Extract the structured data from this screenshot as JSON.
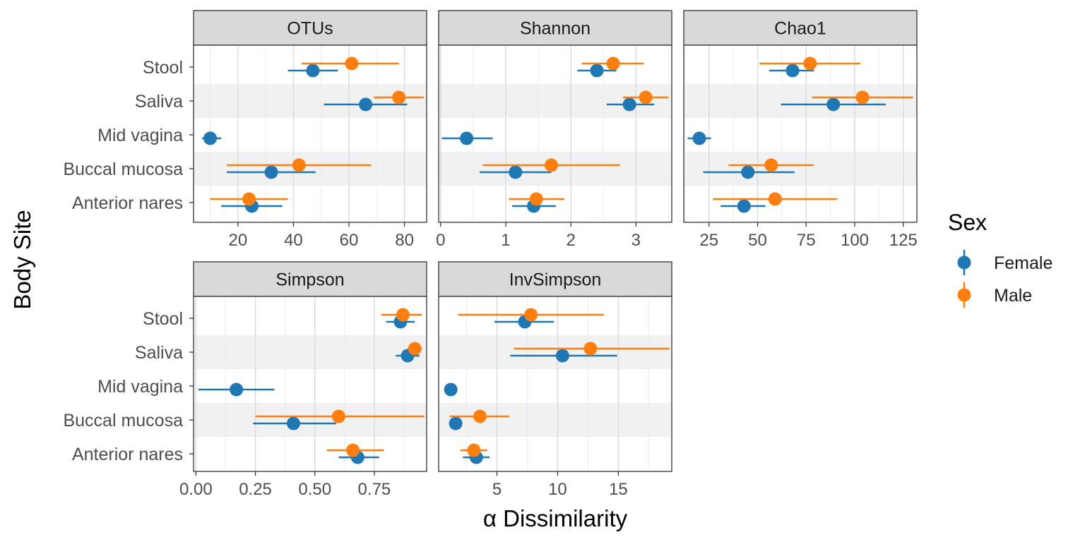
{
  "chart_data": {
    "type": "scatter",
    "subtype": "faceted dot-and-errorbar plot",
    "xlabel": "α Dissimilarity",
    "ylabel": "Body Site",
    "categories": [
      "Stool",
      "Saliva",
      "Mid vagina",
      "Buccal mucosa",
      "Anterior nares"
    ],
    "legend": {
      "title": "Sex",
      "position": "right",
      "entries": [
        {
          "name": "Female",
          "color": "#1f77b4"
        },
        {
          "name": "Male",
          "color": "#ff7f0e"
        }
      ]
    },
    "grid": true,
    "panels": [
      {
        "title": "OTUs",
        "xlim": [
          4,
          88
        ],
        "xticks": [
          20,
          40,
          60,
          80
        ],
        "xtick_labels": [
          "20",
          "40",
          "60",
          "80"
        ],
        "series": [
          {
            "name": "Female",
            "points": [
              {
                "site": "Stool",
                "mean": 47,
                "low": 38,
                "high": 56
              },
              {
                "site": "Saliva",
                "mean": 66,
                "low": 51,
                "high": 81
              },
              {
                "site": "Mid vagina",
                "mean": 10,
                "low": 7,
                "high": 14
              },
              {
                "site": "Buccal mucosa",
                "mean": 32,
                "low": 16,
                "high": 48
              },
              {
                "site": "Anterior nares",
                "mean": 25,
                "low": 14,
                "high": 36
              }
            ]
          },
          {
            "name": "Male",
            "points": [
              {
                "site": "Stool",
                "mean": 61,
                "low": 43,
                "high": 78
              },
              {
                "site": "Saliva",
                "mean": 78,
                "low": 69,
                "high": 87
              },
              {
                "site": "Buccal mucosa",
                "mean": 42,
                "low": 16,
                "high": 68
              },
              {
                "site": "Anterior nares",
                "mean": 24,
                "low": 10,
                "high": 38
              }
            ]
          }
        ]
      },
      {
        "title": "Shannon",
        "xlim": [
          -0.03,
          3.55
        ],
        "xticks": [
          0,
          1,
          2,
          3
        ],
        "xtick_labels": [
          "0",
          "1",
          "2",
          "3"
        ],
        "series": [
          {
            "name": "Female",
            "points": [
              {
                "site": "Stool",
                "mean": 2.4,
                "low": 2.1,
                "high": 2.7
              },
              {
                "site": "Saliva",
                "mean": 2.9,
                "low": 2.55,
                "high": 3.28
              },
              {
                "site": "Mid vagina",
                "mean": 0.4,
                "low": 0.02,
                "high": 0.8
              },
              {
                "site": "Buccal mucosa",
                "mean": 1.15,
                "low": 0.6,
                "high": 1.7
              },
              {
                "site": "Anterior nares",
                "mean": 1.43,
                "low": 1.1,
                "high": 1.77
              }
            ]
          },
          {
            "name": "Male",
            "points": [
              {
                "site": "Stool",
                "mean": 2.65,
                "low": 2.17,
                "high": 3.12
              },
              {
                "site": "Saliva",
                "mean": 3.15,
                "low": 2.8,
                "high": 3.5
              },
              {
                "site": "Buccal mucosa",
                "mean": 1.7,
                "low": 0.65,
                "high": 2.75
              },
              {
                "site": "Anterior nares",
                "mean": 1.47,
                "low": 1.05,
                "high": 1.9
              }
            ]
          }
        ]
      },
      {
        "title": "Chao1",
        "xlim": [
          12,
          132
        ],
        "xticks": [
          25,
          50,
          75,
          100,
          125
        ],
        "xtick_labels": [
          "25",
          "50",
          "75",
          "100",
          "125"
        ],
        "series": [
          {
            "name": "Female",
            "points": [
              {
                "site": "Stool",
                "mean": 68,
                "low": 56,
                "high": 79
              },
              {
                "site": "Saliva",
                "mean": 89,
                "low": 62,
                "high": 116
              },
              {
                "site": "Mid vagina",
                "mean": 20,
                "low": 14,
                "high": 26
              },
              {
                "site": "Buccal mucosa",
                "mean": 45,
                "low": 22,
                "high": 69
              },
              {
                "site": "Anterior nares",
                "mean": 43,
                "low": 31,
                "high": 54
              }
            ]
          },
          {
            "name": "Male",
            "points": [
              {
                "site": "Stool",
                "mean": 77,
                "low": 51,
                "high": 103
              },
              {
                "site": "Saliva",
                "mean": 104,
                "low": 78,
                "high": 130
              },
              {
                "site": "Buccal mucosa",
                "mean": 57,
                "low": 35,
                "high": 79
              },
              {
                "site": "Anterior nares",
                "mean": 59,
                "low": 27,
                "high": 91
              }
            ]
          }
        ]
      },
      {
        "title": "Simpson",
        "xlim": [
          -0.01,
          0.97
        ],
        "xticks": [
          0,
          0.25,
          0.5,
          0.75
        ],
        "xtick_labels": [
          "0.00",
          "0.25",
          "0.50",
          "0.75"
        ],
        "series": [
          {
            "name": "Female",
            "points": [
              {
                "site": "Stool",
                "mean": 0.86,
                "low": 0.8,
                "high": 0.92
              },
              {
                "site": "Saliva",
                "mean": 0.89,
                "low": 0.84,
                "high": 0.94
              },
              {
                "site": "Mid vagina",
                "mean": 0.17,
                "low": 0.01,
                "high": 0.33
              },
              {
                "site": "Buccal mucosa",
                "mean": 0.41,
                "low": 0.24,
                "high": 0.59
              },
              {
                "site": "Anterior nares",
                "mean": 0.68,
                "low": 0.6,
                "high": 0.77
              }
            ]
          },
          {
            "name": "Male",
            "points": [
              {
                "site": "Stool",
                "mean": 0.87,
                "low": 0.78,
                "high": 0.95
              },
              {
                "site": "Saliva",
                "mean": 0.92,
                "low": 0.89,
                "high": 0.95
              },
              {
                "site": "Buccal mucosa",
                "mean": 0.6,
                "low": 0.25,
                "high": 0.96
              },
              {
                "site": "Anterior nares",
                "mean": 0.66,
                "low": 0.55,
                "high": 0.79
              }
            ]
          }
        ]
      },
      {
        "title": "InvSimpson",
        "xlim": [
          0.2,
          19.4
        ],
        "xticks": [
          5,
          10,
          15
        ],
        "xtick_labels": [
          "5",
          "10",
          "15"
        ],
        "series": [
          {
            "name": "Female",
            "points": [
              {
                "site": "Stool",
                "mean": 7.3,
                "low": 4.8,
                "high": 9.7
              },
              {
                "site": "Saliva",
                "mean": 10.4,
                "low": 6.1,
                "high": 14.9
              },
              {
                "site": "Mid vagina",
                "mean": 1.2,
                "low": 1.0,
                "high": 1.4
              },
              {
                "site": "Buccal mucosa",
                "mean": 1.6,
                "low": 1.4,
                "high": 1.8
              },
              {
                "site": "Anterior nares",
                "mean": 3.3,
                "low": 2.2,
                "high": 4.4
              }
            ]
          },
          {
            "name": "Male",
            "points": [
              {
                "site": "Stool",
                "mean": 7.8,
                "low": 1.8,
                "high": 13.8
              },
              {
                "site": "Saliva",
                "mean": 12.7,
                "low": 6.4,
                "high": 19.2
              },
              {
                "site": "Buccal mucosa",
                "mean": 3.6,
                "low": 1.1,
                "high": 6.0
              },
              {
                "site": "Anterior nares",
                "mean": 3.1,
                "low": 2.0,
                "high": 4.2
              }
            ]
          }
        ]
      }
    ]
  }
}
